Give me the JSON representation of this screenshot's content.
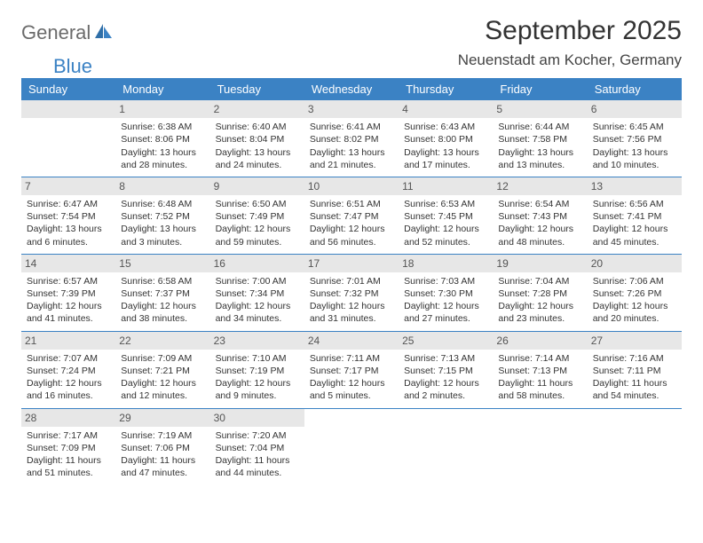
{
  "logo": {
    "part1": "General",
    "part2": "Blue"
  },
  "title": "September 2025",
  "location": "Neuenstadt am Kocher, Germany",
  "colors": {
    "header_bg": "#3b82c4",
    "header_text": "#ffffff",
    "daynum_bg": "#e7e7e7",
    "text": "#333333",
    "logo_gray": "#6b6b6b",
    "logo_blue": "#3b82c4"
  },
  "dayHeaders": [
    "Sunday",
    "Monday",
    "Tuesday",
    "Wednesday",
    "Thursday",
    "Friday",
    "Saturday"
  ],
  "weeks": [
    [
      {
        "empty": true
      },
      {
        "num": "1",
        "sunrise": "Sunrise: 6:38 AM",
        "sunset": "Sunset: 8:06 PM",
        "daylight1": "Daylight: 13 hours",
        "daylight2": "and 28 minutes."
      },
      {
        "num": "2",
        "sunrise": "Sunrise: 6:40 AM",
        "sunset": "Sunset: 8:04 PM",
        "daylight1": "Daylight: 13 hours",
        "daylight2": "and 24 minutes."
      },
      {
        "num": "3",
        "sunrise": "Sunrise: 6:41 AM",
        "sunset": "Sunset: 8:02 PM",
        "daylight1": "Daylight: 13 hours",
        "daylight2": "and 21 minutes."
      },
      {
        "num": "4",
        "sunrise": "Sunrise: 6:43 AM",
        "sunset": "Sunset: 8:00 PM",
        "daylight1": "Daylight: 13 hours",
        "daylight2": "and 17 minutes."
      },
      {
        "num": "5",
        "sunrise": "Sunrise: 6:44 AM",
        "sunset": "Sunset: 7:58 PM",
        "daylight1": "Daylight: 13 hours",
        "daylight2": "and 13 minutes."
      },
      {
        "num": "6",
        "sunrise": "Sunrise: 6:45 AM",
        "sunset": "Sunset: 7:56 PM",
        "daylight1": "Daylight: 13 hours",
        "daylight2": "and 10 minutes."
      }
    ],
    [
      {
        "num": "7",
        "sunrise": "Sunrise: 6:47 AM",
        "sunset": "Sunset: 7:54 PM",
        "daylight1": "Daylight: 13 hours",
        "daylight2": "and 6 minutes."
      },
      {
        "num": "8",
        "sunrise": "Sunrise: 6:48 AM",
        "sunset": "Sunset: 7:52 PM",
        "daylight1": "Daylight: 13 hours",
        "daylight2": "and 3 minutes."
      },
      {
        "num": "9",
        "sunrise": "Sunrise: 6:50 AM",
        "sunset": "Sunset: 7:49 PM",
        "daylight1": "Daylight: 12 hours",
        "daylight2": "and 59 minutes."
      },
      {
        "num": "10",
        "sunrise": "Sunrise: 6:51 AM",
        "sunset": "Sunset: 7:47 PM",
        "daylight1": "Daylight: 12 hours",
        "daylight2": "and 56 minutes."
      },
      {
        "num": "11",
        "sunrise": "Sunrise: 6:53 AM",
        "sunset": "Sunset: 7:45 PM",
        "daylight1": "Daylight: 12 hours",
        "daylight2": "and 52 minutes."
      },
      {
        "num": "12",
        "sunrise": "Sunrise: 6:54 AM",
        "sunset": "Sunset: 7:43 PM",
        "daylight1": "Daylight: 12 hours",
        "daylight2": "and 48 minutes."
      },
      {
        "num": "13",
        "sunrise": "Sunrise: 6:56 AM",
        "sunset": "Sunset: 7:41 PM",
        "daylight1": "Daylight: 12 hours",
        "daylight2": "and 45 minutes."
      }
    ],
    [
      {
        "num": "14",
        "sunrise": "Sunrise: 6:57 AM",
        "sunset": "Sunset: 7:39 PM",
        "daylight1": "Daylight: 12 hours",
        "daylight2": "and 41 minutes."
      },
      {
        "num": "15",
        "sunrise": "Sunrise: 6:58 AM",
        "sunset": "Sunset: 7:37 PM",
        "daylight1": "Daylight: 12 hours",
        "daylight2": "and 38 minutes."
      },
      {
        "num": "16",
        "sunrise": "Sunrise: 7:00 AM",
        "sunset": "Sunset: 7:34 PM",
        "daylight1": "Daylight: 12 hours",
        "daylight2": "and 34 minutes."
      },
      {
        "num": "17",
        "sunrise": "Sunrise: 7:01 AM",
        "sunset": "Sunset: 7:32 PM",
        "daylight1": "Daylight: 12 hours",
        "daylight2": "and 31 minutes."
      },
      {
        "num": "18",
        "sunrise": "Sunrise: 7:03 AM",
        "sunset": "Sunset: 7:30 PM",
        "daylight1": "Daylight: 12 hours",
        "daylight2": "and 27 minutes."
      },
      {
        "num": "19",
        "sunrise": "Sunrise: 7:04 AM",
        "sunset": "Sunset: 7:28 PM",
        "daylight1": "Daylight: 12 hours",
        "daylight2": "and 23 minutes."
      },
      {
        "num": "20",
        "sunrise": "Sunrise: 7:06 AM",
        "sunset": "Sunset: 7:26 PM",
        "daylight1": "Daylight: 12 hours",
        "daylight2": "and 20 minutes."
      }
    ],
    [
      {
        "num": "21",
        "sunrise": "Sunrise: 7:07 AM",
        "sunset": "Sunset: 7:24 PM",
        "daylight1": "Daylight: 12 hours",
        "daylight2": "and 16 minutes."
      },
      {
        "num": "22",
        "sunrise": "Sunrise: 7:09 AM",
        "sunset": "Sunset: 7:21 PM",
        "daylight1": "Daylight: 12 hours",
        "daylight2": "and 12 minutes."
      },
      {
        "num": "23",
        "sunrise": "Sunrise: 7:10 AM",
        "sunset": "Sunset: 7:19 PM",
        "daylight1": "Daylight: 12 hours",
        "daylight2": "and 9 minutes."
      },
      {
        "num": "24",
        "sunrise": "Sunrise: 7:11 AM",
        "sunset": "Sunset: 7:17 PM",
        "daylight1": "Daylight: 12 hours",
        "daylight2": "and 5 minutes."
      },
      {
        "num": "25",
        "sunrise": "Sunrise: 7:13 AM",
        "sunset": "Sunset: 7:15 PM",
        "daylight1": "Daylight: 12 hours",
        "daylight2": "and 2 minutes."
      },
      {
        "num": "26",
        "sunrise": "Sunrise: 7:14 AM",
        "sunset": "Sunset: 7:13 PM",
        "daylight1": "Daylight: 11 hours",
        "daylight2": "and 58 minutes."
      },
      {
        "num": "27",
        "sunrise": "Sunrise: 7:16 AM",
        "sunset": "Sunset: 7:11 PM",
        "daylight1": "Daylight: 11 hours",
        "daylight2": "and 54 minutes."
      }
    ],
    [
      {
        "num": "28",
        "sunrise": "Sunrise: 7:17 AM",
        "sunset": "Sunset: 7:09 PM",
        "daylight1": "Daylight: 11 hours",
        "daylight2": "and 51 minutes."
      },
      {
        "num": "29",
        "sunrise": "Sunrise: 7:19 AM",
        "sunset": "Sunset: 7:06 PM",
        "daylight1": "Daylight: 11 hours",
        "daylight2": "and 47 minutes."
      },
      {
        "num": "30",
        "sunrise": "Sunrise: 7:20 AM",
        "sunset": "Sunset: 7:04 PM",
        "daylight1": "Daylight: 11 hours",
        "daylight2": "and 44 minutes."
      },
      {
        "empty": true,
        "nobar": true
      },
      {
        "empty": true,
        "nobar": true
      },
      {
        "empty": true,
        "nobar": true
      },
      {
        "empty": true,
        "nobar": true
      }
    ]
  ]
}
